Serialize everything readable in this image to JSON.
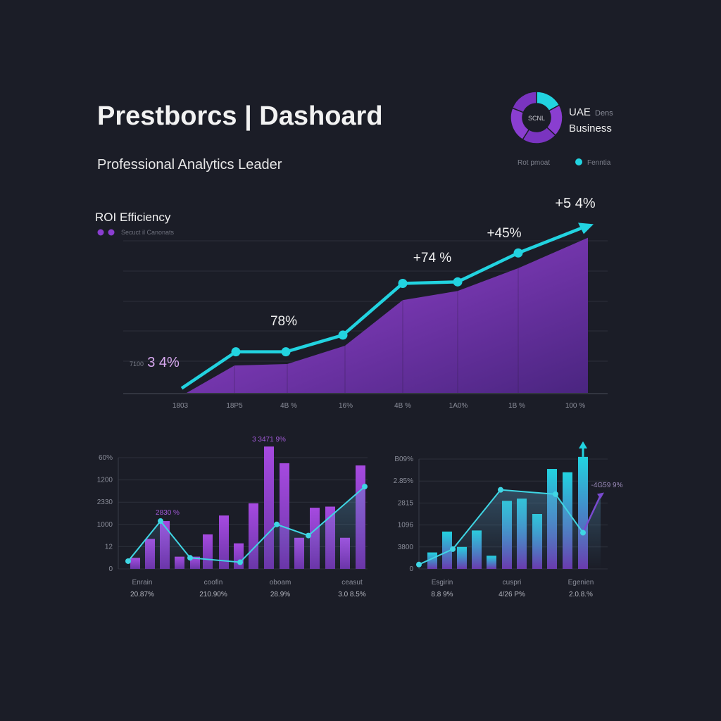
{
  "header": {
    "title": "Prestborcs | Dashoard",
    "subtitle": "Professional Analytics Leader",
    "badge_center": "SCNL",
    "badge_title": "UAE",
    "badge_small": "Dens",
    "badge_sub": "Business",
    "legend_left": "Rot pmoat",
    "legend_right": "Fenntia",
    "donut_fractions": [
      0.17,
      0.2,
      0.22,
      0.22,
      0.19
    ]
  },
  "colors": {
    "background": "#1b1d27",
    "cyan": "#22d3e0",
    "purple": "#9b45d6",
    "text": "#f2f2f2",
    "muted": "#8a8d99"
  },
  "chart_data": [
    {
      "type": "line",
      "title": "ROI Efficiency",
      "subtitle": "Secuct il Canonats",
      "categories": [
        "1803",
        "18P5",
        "4B %",
        "16%",
        "4B %",
        "1A0%",
        "1B %",
        "100 %"
      ],
      "series": [
        {
          "values": [
            3,
            27,
            27,
            38,
            72,
            73,
            92,
            110
          ]
        },
        {
          "values": [
            0,
            18,
            19,
            31,
            61,
            67,
            82,
            102
          ]
        }
      ],
      "annotations": [
        {
          "text": "+5 4%",
          "index": 7
        },
        {
          "text": "+45%",
          "index": 6
        },
        {
          "text": "+74 %",
          "index": 4
        },
        {
          "text": "78%",
          "index": 2
        },
        {
          "text": "3 4%",
          "prefix": "7100",
          "index": 0
        }
      ],
      "grid": true,
      "ylim": [
        0,
        100
      ]
    },
    {
      "type": "bar",
      "yticks": [
        "0",
        "12",
        "1000",
        "2330",
        "1200",
        "60%"
      ],
      "bars": [
        10,
        27,
        43,
        11,
        11,
        31,
        48,
        23,
        59,
        110,
        95,
        28,
        55,
        56,
        28,
        93
      ],
      "line": [
        7,
        43,
        10,
        6,
        40,
        30,
        74
      ],
      "annotations": [
        "2830 %",
        "3 3471 9%"
      ],
      "groups": [
        {
          "label": "Enrain",
          "value": "20.87%"
        },
        {
          "label": "coofin",
          "value": "210.90%"
        },
        {
          "label": "oboam",
          "value": "28.9%"
        },
        {
          "label": "ceasut",
          "value": "3.0 8.5%"
        }
      ],
      "ylim": [
        0,
        100
      ]
    },
    {
      "type": "bar",
      "yticks": [
        "0",
        "3800",
        "1096",
        "2815",
        "2.85%",
        "B09%"
      ],
      "bars": [
        15,
        34,
        20,
        35,
        12,
        62,
        64,
        50,
        91,
        88,
        102
      ],
      "line": [
        4,
        18,
        72,
        68,
        33,
        67
      ],
      "annotations": [
        "-4G59 9%"
      ],
      "groups": [
        {
          "label": "Esgirin",
          "value": "8.8 9%"
        },
        {
          "label": "cuspri",
          "value": "4/26 P%"
        },
        {
          "label": "Egenien",
          "value": "2.0.8.%"
        }
      ],
      "ylim": [
        0,
        100
      ]
    }
  ]
}
